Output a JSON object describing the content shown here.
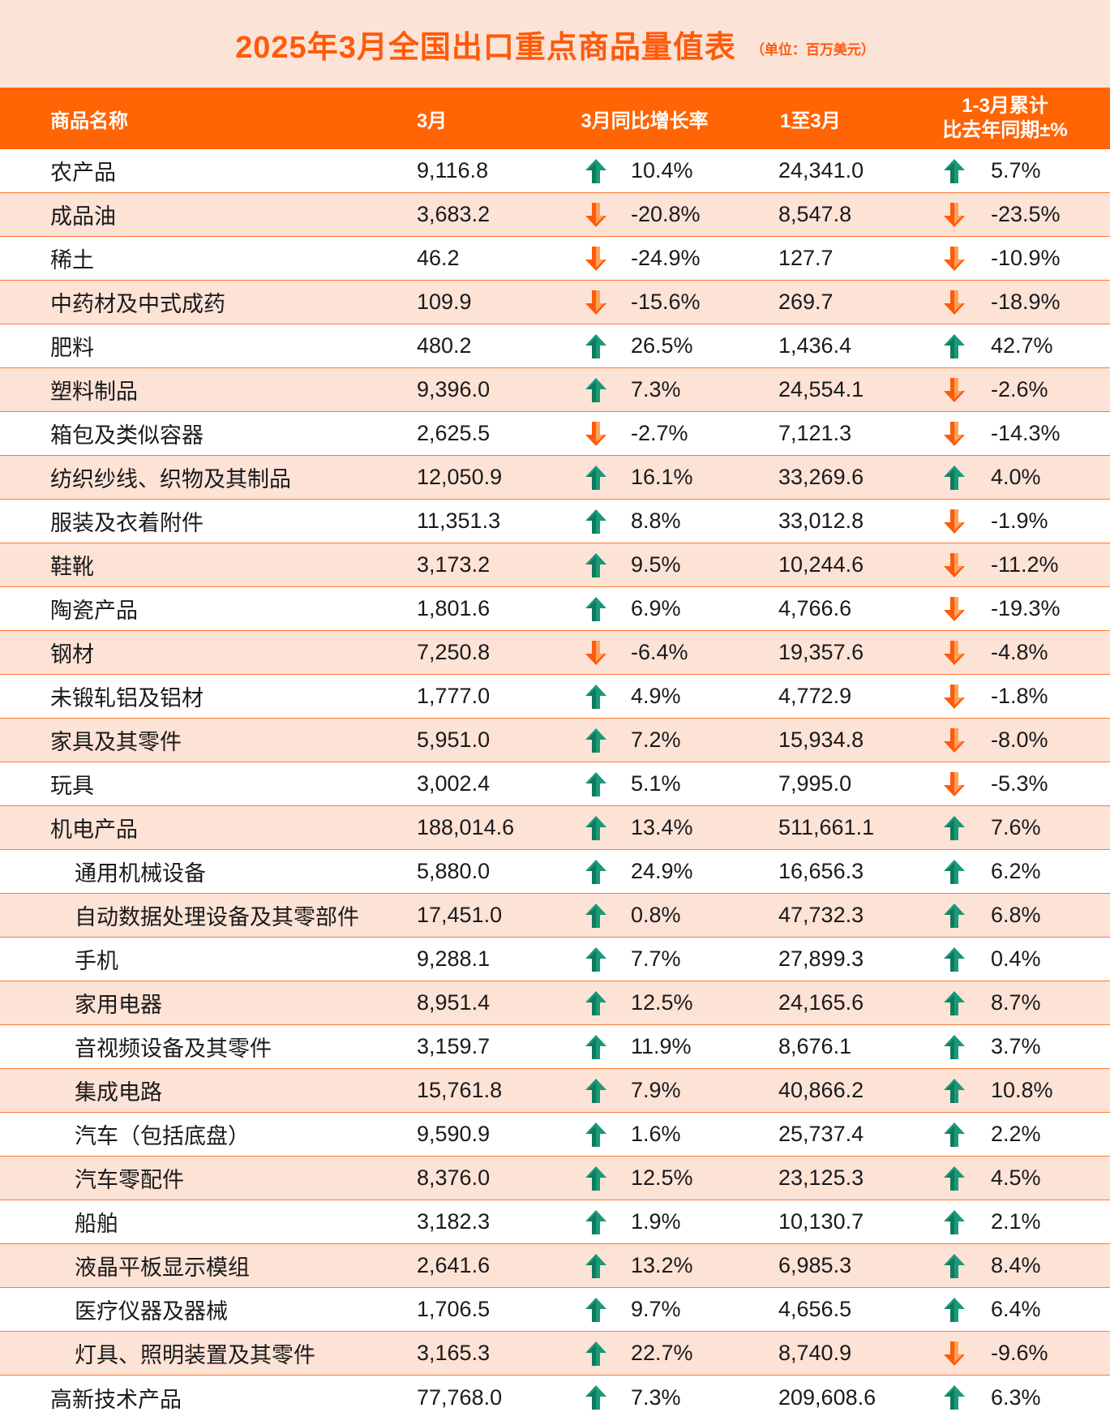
{
  "title": "2025年3月全国出口重点商品量值表",
  "unit": "（单位：百万美元）",
  "colors": {
    "accent": "#ff6405",
    "up": "#1a9a78",
    "down": "#ff5a0a",
    "alt_row": "#fde2d6"
  },
  "icons": {
    "up": "up-arrow-icon",
    "down": "down-arrow-icon"
  },
  "headers": {
    "name": "商品名称",
    "march": "3月",
    "yoy": "3月同比增长率",
    "ytd": "1至3月",
    "cum_line1": "1-3月累计",
    "cum_line2": "比去年同期±%"
  },
  "rows": [
    {
      "name": "农产品",
      "march": "9,116.8",
      "yoy": "10.4%",
      "yoy_dir": "up",
      "ytd": "24,341.0",
      "cum": "5.7%",
      "cum_dir": "up",
      "sub": false
    },
    {
      "name": "成品油",
      "march": "3,683.2",
      "yoy": "-20.8%",
      "yoy_dir": "down",
      "ytd": "8,547.8",
      "cum": "-23.5%",
      "cum_dir": "down",
      "sub": false
    },
    {
      "name": "稀土",
      "march": "46.2",
      "yoy": "-24.9%",
      "yoy_dir": "down",
      "ytd": "127.7",
      "cum": "-10.9%",
      "cum_dir": "down",
      "sub": false
    },
    {
      "name": "中药材及中式成药",
      "march": "109.9",
      "yoy": "-15.6%",
      "yoy_dir": "down",
      "ytd": "269.7",
      "cum": "-18.9%",
      "cum_dir": "down",
      "sub": false
    },
    {
      "name": "肥料",
      "march": "480.2",
      "yoy": "26.5%",
      "yoy_dir": "up",
      "ytd": "1,436.4",
      "cum": "42.7%",
      "cum_dir": "up",
      "sub": false
    },
    {
      "name": "塑料制品",
      "march": "9,396.0",
      "yoy": "7.3%",
      "yoy_dir": "up",
      "ytd": "24,554.1",
      "cum": "-2.6%",
      "cum_dir": "down",
      "sub": false
    },
    {
      "name": "箱包及类似容器",
      "march": "2,625.5",
      "yoy": "-2.7%",
      "yoy_dir": "down",
      "ytd": "7,121.3",
      "cum": "-14.3%",
      "cum_dir": "down",
      "sub": false
    },
    {
      "name": "纺织纱线、织物及其制品",
      "march": "12,050.9",
      "yoy": "16.1%",
      "yoy_dir": "up",
      "ytd": "33,269.6",
      "cum": "4.0%",
      "cum_dir": "up",
      "sub": false
    },
    {
      "name": "服装及衣着附件",
      "march": "11,351.3",
      "yoy": "8.8%",
      "yoy_dir": "up",
      "ytd": "33,012.8",
      "cum": "-1.9%",
      "cum_dir": "down",
      "sub": false
    },
    {
      "name": "鞋靴",
      "march": "3,173.2",
      "yoy": "9.5%",
      "yoy_dir": "up",
      "ytd": "10,244.6",
      "cum": "-11.2%",
      "cum_dir": "down",
      "sub": false
    },
    {
      "name": "陶瓷产品",
      "march": "1,801.6",
      "yoy": "6.9%",
      "yoy_dir": "up",
      "ytd": "4,766.6",
      "cum": "-19.3%",
      "cum_dir": "down",
      "sub": false
    },
    {
      "name": "钢材",
      "march": "7,250.8",
      "yoy": "-6.4%",
      "yoy_dir": "down",
      "ytd": "19,357.6",
      "cum": "-4.8%",
      "cum_dir": "down",
      "sub": false
    },
    {
      "name": "未锻轧铝及铝材",
      "march": "1,777.0",
      "yoy": "4.9%",
      "yoy_dir": "up",
      "ytd": "4,772.9",
      "cum": "-1.8%",
      "cum_dir": "down",
      "sub": false
    },
    {
      "name": "家具及其零件",
      "march": "5,951.0",
      "yoy": "7.2%",
      "yoy_dir": "up",
      "ytd": "15,934.8",
      "cum": "-8.0%",
      "cum_dir": "down",
      "sub": false
    },
    {
      "name": "玩具",
      "march": "3,002.4",
      "yoy": "5.1%",
      "yoy_dir": "up",
      "ytd": "7,995.0",
      "cum": "-5.3%",
      "cum_dir": "down",
      "sub": false
    },
    {
      "name": "机电产品",
      "march": "188,014.6",
      "yoy": "13.4%",
      "yoy_dir": "up",
      "ytd": "511,661.1",
      "cum": "7.6%",
      "cum_dir": "up",
      "sub": false
    },
    {
      "name": "通用机械设备",
      "march": "5,880.0",
      "yoy": "24.9%",
      "yoy_dir": "up",
      "ytd": "16,656.3",
      "cum": "6.2%",
      "cum_dir": "up",
      "sub": true
    },
    {
      "name": "自动数据处理设备及其零部件",
      "march": "17,451.0",
      "yoy": "0.8%",
      "yoy_dir": "up",
      "ytd": "47,732.3",
      "cum": "6.8%",
      "cum_dir": "up",
      "sub": true
    },
    {
      "name": "手机",
      "march": "9,288.1",
      "yoy": "7.7%",
      "yoy_dir": "up",
      "ytd": "27,899.3",
      "cum": "0.4%",
      "cum_dir": "up",
      "sub": true
    },
    {
      "name": "家用电器",
      "march": "8,951.4",
      "yoy": "12.5%",
      "yoy_dir": "up",
      "ytd": "24,165.6",
      "cum": "8.7%",
      "cum_dir": "up",
      "sub": true
    },
    {
      "name": "音视频设备及其零件",
      "march": "3,159.7",
      "yoy": "11.9%",
      "yoy_dir": "up",
      "ytd": "8,676.1",
      "cum": "3.7%",
      "cum_dir": "up",
      "sub": true
    },
    {
      "name": "集成电路",
      "march": "15,761.8",
      "yoy": "7.9%",
      "yoy_dir": "up",
      "ytd": "40,866.2",
      "cum": "10.8%",
      "cum_dir": "up",
      "sub": true
    },
    {
      "name": "汽车（包括底盘）",
      "march": "9,590.9",
      "yoy": "1.6%",
      "yoy_dir": "up",
      "ytd": "25,737.4",
      "cum": "2.2%",
      "cum_dir": "up",
      "sub": true
    },
    {
      "name": "汽车零配件",
      "march": "8,376.0",
      "yoy": "12.5%",
      "yoy_dir": "up",
      "ytd": "23,125.3",
      "cum": "4.5%",
      "cum_dir": "up",
      "sub": true
    },
    {
      "name": "船舶",
      "march": "3,182.3",
      "yoy": "1.9%",
      "yoy_dir": "up",
      "ytd": "10,130.7",
      "cum": "2.1%",
      "cum_dir": "up",
      "sub": true
    },
    {
      "name": "液晶平板显示模组",
      "march": "2,641.6",
      "yoy": "13.2%",
      "yoy_dir": "up",
      "ytd": "6,985.3",
      "cum": "8.4%",
      "cum_dir": "up",
      "sub": true
    },
    {
      "name": "医疗仪器及器械",
      "march": "1,706.5",
      "yoy": "9.7%",
      "yoy_dir": "up",
      "ytd": "4,656.5",
      "cum": "6.4%",
      "cum_dir": "up",
      "sub": true
    },
    {
      "name": "灯具、照明装置及其零件",
      "march": "3,165.3",
      "yoy": "22.7%",
      "yoy_dir": "up",
      "ytd": "8,740.9",
      "cum": "-9.6%",
      "cum_dir": "down",
      "sub": true
    },
    {
      "name": "高新技术产品",
      "march": "77,768.0",
      "yoy": "7.3%",
      "yoy_dir": "up",
      "ytd": "209,608.6",
      "cum": "6.3%",
      "cum_dir": "up",
      "sub": false
    }
  ]
}
